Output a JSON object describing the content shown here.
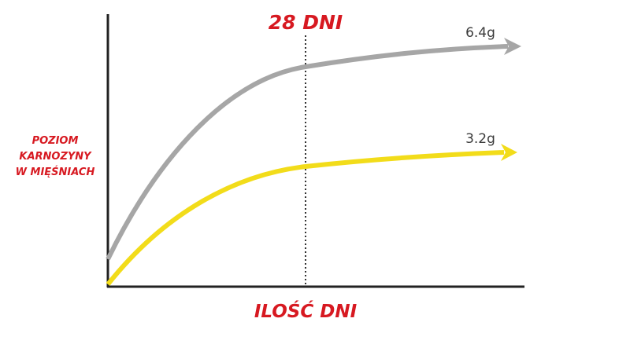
{
  "annotation": "28 DNI",
  "y_label": [
    "POZIOM",
    "KARNOZYNY",
    "W MIĘŚNIACH"
  ],
  "x_label": "ILOŚĆ DNI",
  "curves": [
    {
      "label": "6.4g"
    },
    {
      "label": "3.2g"
    }
  ]
}
